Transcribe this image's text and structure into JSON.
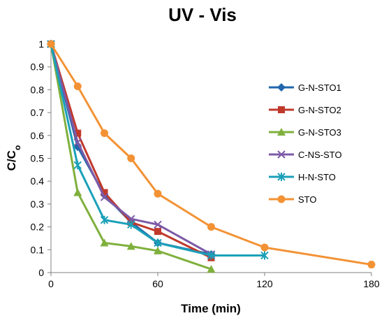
{
  "chart_data": {
    "type": "line",
    "title": "UV - Vis",
    "xlabel": "Time (min)",
    "ylabel": "C/C",
    "ylabel_subscript": "o",
    "xlim": [
      0,
      180
    ],
    "ylim": [
      0,
      1
    ],
    "xticks": [
      0,
      60,
      120,
      180
    ],
    "yticks": [
      0,
      0.1,
      0.2,
      0.3,
      0.4,
      0.5,
      0.6,
      0.7,
      0.8,
      0.9,
      1
    ],
    "grid": false,
    "legend_position": "right",
    "series": [
      {
        "name": "G-N-STO1",
        "color": "#2167ad",
        "marker": "diamond",
        "x": [
          0,
          15,
          30,
          45,
          60,
          90
        ],
        "y": [
          1,
          0.55,
          0.34,
          0.22,
          0.13,
          0.08
        ]
      },
      {
        "name": "G-N-STO2",
        "color": "#c0392b",
        "marker": "square",
        "x": [
          0,
          15,
          30,
          45,
          60,
          90
        ],
        "y": [
          1,
          0.61,
          0.35,
          0.22,
          0.18,
          0.065
        ]
      },
      {
        "name": "G-N-STO3",
        "color": "#7fb03d",
        "marker": "triangle",
        "x": [
          0,
          15,
          30,
          45,
          60,
          90
        ],
        "y": [
          1,
          0.35,
          0.13,
          0.115,
          0.095,
          0.015
        ]
      },
      {
        "name": "C-NS-STO",
        "color": "#7c5aa6",
        "marker": "x",
        "x": [
          0,
          15,
          30,
          45,
          60,
          90
        ],
        "y": [
          1,
          0.57,
          0.33,
          0.235,
          0.21,
          0.08
        ]
      },
      {
        "name": "H-N-STO",
        "color": "#1aa0b8",
        "marker": "asterisk",
        "x": [
          0,
          15,
          30,
          45,
          60,
          90,
          120
        ],
        "y": [
          1,
          0.47,
          0.23,
          0.21,
          0.13,
          0.075,
          0.075
        ]
      },
      {
        "name": "STO",
        "color": "#f39234",
        "marker": "circle",
        "x": [
          0,
          15,
          30,
          45,
          60,
          90,
          120,
          180
        ],
        "y": [
          1,
          0.815,
          0.61,
          0.5,
          0.345,
          0.2,
          0.11,
          0.035
        ]
      }
    ]
  }
}
